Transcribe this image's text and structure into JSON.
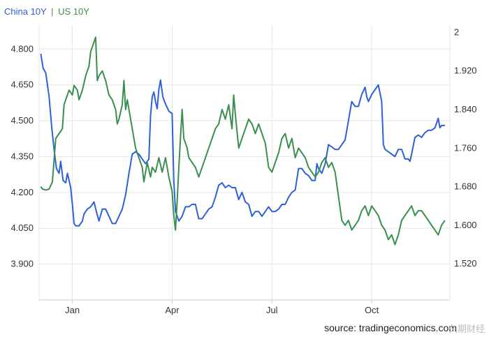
{
  "legend": {
    "china_label": "China 10Y",
    "separator": "|",
    "us_label": "US 10Y"
  },
  "colors": {
    "china": "#2f60d6",
    "us": "#3a8f4e",
    "grid": "#e6e6e6",
    "text": "#333333"
  },
  "source": "source: tradingeconomics.com",
  "watermark": "久期财经",
  "chart_data": {
    "type": "line",
    "title": "",
    "xlabel": "",
    "grid": true,
    "legend_placement": "top-left",
    "x_range": [
      0,
      12.35
    ],
    "x_ticks": [
      {
        "label": "Jan",
        "x": 1.0
      },
      {
        "label": "Apr",
        "x": 4.0
      },
      {
        "label": "Jul",
        "x": 7.0
      },
      {
        "label": "Oct",
        "x": 10.0
      }
    ],
    "y_left": {
      "range": [
        3.75,
        4.9
      ],
      "ticks": [
        "4.800",
        "4.650",
        "4.500",
        "4.350",
        "4.200",
        "4.050",
        "3.900"
      ],
      "tick_values": [
        4.8,
        4.65,
        4.5,
        4.35,
        4.2,
        4.05,
        3.9
      ]
    },
    "y_right": {
      "range": [
        1.445,
        2.015
      ],
      "ticks": [
        "2",
        "1.920",
        "1.840",
        "1.760",
        "1.680",
        "1.600",
        "1.520"
      ],
      "tick_values": [
        2.0,
        1.92,
        1.84,
        1.76,
        1.68,
        1.6,
        1.52
      ]
    },
    "series": [
      {
        "name": "China 10Y",
        "axis": "left",
        "points": [
          [
            0.05,
            4.78
          ],
          [
            0.12,
            4.72
          ],
          [
            0.2,
            4.7
          ],
          [
            0.3,
            4.6
          ],
          [
            0.38,
            4.47
          ],
          [
            0.45,
            4.38
          ],
          [
            0.52,
            4.3
          ],
          [
            0.6,
            4.28
          ],
          [
            0.65,
            4.33
          ],
          [
            0.72,
            4.25
          ],
          [
            0.8,
            4.24
          ],
          [
            0.85,
            4.28
          ],
          [
            0.95,
            4.22
          ],
          [
            1.0,
            4.15
          ],
          [
            1.05,
            4.07
          ],
          [
            1.1,
            4.06
          ],
          [
            1.2,
            4.06
          ],
          [
            1.3,
            4.08
          ],
          [
            1.35,
            4.11
          ],
          [
            1.45,
            4.13
          ],
          [
            1.55,
            4.14
          ],
          [
            1.65,
            4.16
          ],
          [
            1.72,
            4.12
          ],
          [
            1.8,
            4.08
          ],
          [
            1.9,
            4.13
          ],
          [
            2.0,
            4.13
          ],
          [
            2.1,
            4.1
          ],
          [
            2.2,
            4.07
          ],
          [
            2.3,
            4.07
          ],
          [
            2.4,
            4.1
          ],
          [
            2.5,
            4.13
          ],
          [
            2.6,
            4.19
          ],
          [
            2.7,
            4.28
          ],
          [
            2.8,
            4.36
          ],
          [
            2.9,
            4.37
          ],
          [
            3.0,
            4.36
          ],
          [
            3.1,
            4.34
          ],
          [
            3.2,
            4.32
          ],
          [
            3.3,
            4.34
          ],
          [
            3.35,
            4.52
          ],
          [
            3.4,
            4.6
          ],
          [
            3.45,
            4.62
          ],
          [
            3.5,
            4.58
          ],
          [
            3.55,
            4.55
          ],
          [
            3.6,
            4.63
          ],
          [
            3.65,
            4.67
          ],
          [
            3.72,
            4.6
          ],
          [
            3.8,
            4.57
          ],
          [
            3.9,
            4.54
          ],
          [
            4.0,
            4.53
          ],
          [
            4.05,
            4.25
          ],
          [
            4.1,
            4.12
          ],
          [
            4.2,
            4.08
          ],
          [
            4.3,
            4.1
          ],
          [
            4.4,
            4.14
          ],
          [
            4.5,
            4.14
          ],
          [
            4.6,
            4.15
          ],
          [
            4.7,
            4.15
          ],
          [
            4.8,
            4.09
          ],
          [
            4.9,
            4.09
          ],
          [
            5.0,
            4.11
          ],
          [
            5.1,
            4.13
          ],
          [
            5.2,
            4.14
          ],
          [
            5.3,
            4.18
          ],
          [
            5.4,
            4.23
          ],
          [
            5.5,
            4.24
          ],
          [
            5.6,
            4.22
          ],
          [
            5.7,
            4.23
          ],
          [
            5.8,
            4.22
          ],
          [
            5.9,
            4.22
          ],
          [
            6.0,
            4.17
          ],
          [
            6.1,
            4.2
          ],
          [
            6.2,
            4.16
          ],
          [
            6.3,
            4.15
          ],
          [
            6.4,
            4.1
          ],
          [
            6.5,
            4.12
          ],
          [
            6.6,
            4.12
          ],
          [
            6.7,
            4.1
          ],
          [
            6.8,
            4.12
          ],
          [
            6.9,
            4.14
          ],
          [
            7.0,
            4.12
          ],
          [
            7.1,
            4.12
          ],
          [
            7.2,
            4.13
          ],
          [
            7.3,
            4.15
          ],
          [
            7.4,
            4.15
          ],
          [
            7.5,
            4.18
          ],
          [
            7.6,
            4.2
          ],
          [
            7.7,
            4.21
          ],
          [
            7.8,
            4.3
          ],
          [
            7.9,
            4.3
          ],
          [
            8.0,
            4.28
          ],
          [
            8.1,
            4.27
          ],
          [
            8.2,
            4.25
          ],
          [
            8.3,
            4.25
          ],
          [
            8.35,
            4.32
          ],
          [
            8.4,
            4.3
          ],
          [
            8.5,
            4.28
          ],
          [
            8.6,
            4.32
          ],
          [
            8.7,
            4.4
          ],
          [
            8.8,
            4.39
          ],
          [
            8.9,
            4.38
          ],
          [
            9.0,
            4.38
          ],
          [
            9.1,
            4.4
          ],
          [
            9.2,
            4.42
          ],
          [
            9.3,
            4.5
          ],
          [
            9.4,
            4.58
          ],
          [
            9.5,
            4.56
          ],
          [
            9.6,
            4.56
          ],
          [
            9.7,
            4.61
          ],
          [
            9.8,
            4.64
          ],
          [
            9.85,
            4.6
          ],
          [
            9.9,
            4.58
          ],
          [
            10.0,
            4.61
          ],
          [
            10.1,
            4.63
          ],
          [
            10.2,
            4.65
          ],
          [
            10.3,
            4.58
          ],
          [
            10.35,
            4.4
          ],
          [
            10.4,
            4.38
          ],
          [
            10.5,
            4.37
          ],
          [
            10.6,
            4.36
          ],
          [
            10.7,
            4.35
          ],
          [
            10.8,
            4.38
          ],
          [
            10.9,
            4.38
          ],
          [
            11.0,
            4.34
          ],
          [
            11.1,
            4.34
          ],
          [
            11.15,
            4.33
          ],
          [
            11.2,
            4.36
          ],
          [
            11.3,
            4.43
          ],
          [
            11.4,
            4.44
          ],
          [
            11.5,
            4.43
          ],
          [
            11.6,
            4.45
          ],
          [
            11.7,
            4.46
          ],
          [
            11.8,
            4.46
          ],
          [
            11.9,
            4.47
          ],
          [
            11.95,
            4.49
          ],
          [
            12.0,
            4.51
          ],
          [
            12.05,
            4.47
          ],
          [
            12.1,
            4.48
          ],
          [
            12.2,
            4.48
          ]
        ]
      },
      {
        "name": "US 10Y",
        "axis": "right",
        "points": [
          [
            0.05,
            1.68
          ],
          [
            0.1,
            1.675
          ],
          [
            0.2,
            1.673
          ],
          [
            0.3,
            1.675
          ],
          [
            0.4,
            1.69
          ],
          [
            0.5,
            1.78
          ],
          [
            0.6,
            1.79
          ],
          [
            0.7,
            1.8
          ],
          [
            0.75,
            1.85
          ],
          [
            0.85,
            1.87
          ],
          [
            0.9,
            1.88
          ],
          [
            1.0,
            1.87
          ],
          [
            1.05,
            1.89
          ],
          [
            1.15,
            1.88
          ],
          [
            1.2,
            1.86
          ],
          [
            1.3,
            1.88
          ],
          [
            1.4,
            1.91
          ],
          [
            1.45,
            1.92
          ],
          [
            1.5,
            1.93
          ],
          [
            1.55,
            1.96
          ],
          [
            1.6,
            1.97
          ],
          [
            1.65,
            1.98
          ],
          [
            1.7,
            1.99
          ],
          [
            1.75,
            1.9
          ],
          [
            1.8,
            1.91
          ],
          [
            1.9,
            1.92
          ],
          [
            2.0,
            1.9
          ],
          [
            2.1,
            1.87
          ],
          [
            2.2,
            1.86
          ],
          [
            2.3,
            1.84
          ],
          [
            2.35,
            1.81
          ],
          [
            2.4,
            1.82
          ],
          [
            2.5,
            1.85
          ],
          [
            2.55,
            1.9
          ],
          [
            2.6,
            1.84
          ],
          [
            2.65,
            1.86
          ],
          [
            2.7,
            1.84
          ],
          [
            2.8,
            1.8
          ],
          [
            2.9,
            1.76
          ],
          [
            3.0,
            1.74
          ],
          [
            3.1,
            1.72
          ],
          [
            3.15,
            1.69
          ],
          [
            3.2,
            1.71
          ],
          [
            3.25,
            1.73
          ],
          [
            3.35,
            1.7
          ],
          [
            3.4,
            1.72
          ],
          [
            3.5,
            1.71
          ],
          [
            3.6,
            1.74
          ],
          [
            3.7,
            1.71
          ],
          [
            3.8,
            1.74
          ],
          [
            3.9,
            1.7
          ],
          [
            4.0,
            1.67
          ],
          [
            4.05,
            1.62
          ],
          [
            4.1,
            1.59
          ],
          [
            4.15,
            1.65
          ],
          [
            4.2,
            1.72
          ],
          [
            4.25,
            1.78
          ],
          [
            4.3,
            1.84
          ],
          [
            4.35,
            1.78
          ],
          [
            4.45,
            1.76
          ],
          [
            4.5,
            1.74
          ],
          [
            4.6,
            1.73
          ],
          [
            4.7,
            1.72
          ],
          [
            4.8,
            1.7
          ],
          [
            4.9,
            1.72
          ],
          [
            5.0,
            1.74
          ],
          [
            5.1,
            1.76
          ],
          [
            5.2,
            1.78
          ],
          [
            5.3,
            1.8
          ],
          [
            5.4,
            1.81
          ],
          [
            5.5,
            1.84
          ],
          [
            5.6,
            1.82
          ],
          [
            5.7,
            1.85
          ],
          [
            5.8,
            1.8
          ],
          [
            5.85,
            1.87
          ],
          [
            5.9,
            1.83
          ],
          [
            6.0,
            1.76
          ],
          [
            6.1,
            1.78
          ],
          [
            6.2,
            1.8
          ],
          [
            6.3,
            1.82
          ],
          [
            6.4,
            1.81
          ],
          [
            6.5,
            1.79
          ],
          [
            6.6,
            1.81
          ],
          [
            6.7,
            1.79
          ],
          [
            6.8,
            1.77
          ],
          [
            6.9,
            1.72
          ],
          [
            7.0,
            1.71
          ],
          [
            7.1,
            1.73
          ],
          [
            7.2,
            1.75
          ],
          [
            7.3,
            1.78
          ],
          [
            7.4,
            1.79
          ],
          [
            7.5,
            1.76
          ],
          [
            7.6,
            1.78
          ],
          [
            7.7,
            1.74
          ],
          [
            7.8,
            1.76
          ],
          [
            7.9,
            1.75
          ],
          [
            8.0,
            1.74
          ],
          [
            8.1,
            1.72
          ],
          [
            8.2,
            1.71
          ],
          [
            8.3,
            1.7
          ],
          [
            8.4,
            1.71
          ],
          [
            8.5,
            1.73
          ],
          [
            8.6,
            1.74
          ],
          [
            8.7,
            1.72
          ],
          [
            8.8,
            1.73
          ],
          [
            8.9,
            1.71
          ],
          [
            9.0,
            1.66
          ],
          [
            9.1,
            1.61
          ],
          [
            9.2,
            1.6
          ],
          [
            9.3,
            1.61
          ],
          [
            9.4,
            1.59
          ],
          [
            9.5,
            1.6
          ],
          [
            9.6,
            1.61
          ],
          [
            9.7,
            1.63
          ],
          [
            9.8,
            1.64
          ],
          [
            9.9,
            1.62
          ],
          [
            10.0,
            1.64
          ],
          [
            10.1,
            1.63
          ],
          [
            10.2,
            1.62
          ],
          [
            10.3,
            1.6
          ],
          [
            10.4,
            1.59
          ],
          [
            10.5,
            1.57
          ],
          [
            10.6,
            1.58
          ],
          [
            10.7,
            1.56
          ],
          [
            10.8,
            1.58
          ],
          [
            10.9,
            1.61
          ],
          [
            11.0,
            1.62
          ],
          [
            11.1,
            1.63
          ],
          [
            11.2,
            1.64
          ],
          [
            11.3,
            1.62
          ],
          [
            11.4,
            1.63
          ],
          [
            11.5,
            1.63
          ],
          [
            11.6,
            1.62
          ],
          [
            11.7,
            1.61
          ],
          [
            11.8,
            1.6
          ],
          [
            11.9,
            1.59
          ],
          [
            12.0,
            1.58
          ],
          [
            12.1,
            1.6
          ],
          [
            12.2,
            1.61
          ]
        ]
      }
    ]
  }
}
